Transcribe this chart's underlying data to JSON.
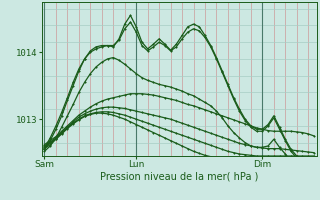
{
  "title": "Pression niveau de la mer( hPa )",
  "ylabel_ticks": [
    1013,
    1014
  ],
  "xtick_labels": [
    "Sam",
    "Lun",
    "Dim"
  ],
  "background_color": "#cce8e2",
  "plot_bg_color": "#cce8e2",
  "line_color": "#1a5c1a",
  "grid_color_h": "#a8cec4",
  "grid_color_v_red": "#cc9999",
  "grid_color_v_dark": "#4a7a6a",
  "ylim": [
    1012.45,
    1014.75
  ],
  "xlim_min": -0.5,
  "xlim_max": 47.5,
  "sam_x": 0,
  "lun_x": 16,
  "dim_x": 38,
  "series_flat": [
    [
      1012.62,
      1012.68,
      1012.74,
      1012.82,
      1012.9,
      1012.98,
      1013.06,
      1013.12,
      1013.18,
      1013.23,
      1013.27,
      1013.3,
      1013.32,
      1013.34,
      1013.36,
      1013.38,
      1013.38,
      1013.38,
      1013.37,
      1013.36,
      1013.34,
      1013.32,
      1013.3,
      1013.28,
      1013.25,
      1013.22,
      1013.2,
      1013.17,
      1013.14,
      1013.11,
      1013.08,
      1013.05,
      1013.02,
      1012.99,
      1012.96,
      1012.93,
      1012.9,
      1012.87,
      1012.85,
      1012.83,
      1012.82,
      1012.82,
      1012.82,
      1012.82,
      1012.81,
      1012.8,
      1012.78,
      1012.75
    ],
    [
      1012.6,
      1012.66,
      1012.72,
      1012.8,
      1012.88,
      1012.96,
      1013.03,
      1013.08,
      1013.12,
      1013.15,
      1013.17,
      1013.18,
      1013.18,
      1013.17,
      1013.16,
      1013.14,
      1013.12,
      1013.1,
      1013.08,
      1013.06,
      1013.04,
      1013.02,
      1013.0,
      1012.97,
      1012.94,
      1012.91,
      1012.88,
      1012.85,
      1012.82,
      1012.79,
      1012.76,
      1012.73,
      1012.7,
      1012.67,
      1012.64,
      1012.62,
      1012.6,
      1012.58,
      1012.57,
      1012.56,
      1012.56,
      1012.56,
      1012.55,
      1012.54,
      1012.53,
      1012.52,
      1012.51,
      1012.5
    ],
    [
      1012.58,
      1012.64,
      1012.71,
      1012.79,
      1012.87,
      1012.94,
      1013.0,
      1013.05,
      1013.08,
      1013.1,
      1013.11,
      1013.11,
      1013.1,
      1013.08,
      1013.06,
      1013.03,
      1013.0,
      1012.97,
      1012.94,
      1012.91,
      1012.88,
      1012.85,
      1012.82,
      1012.79,
      1012.76,
      1012.73,
      1012.7,
      1012.67,
      1012.64,
      1012.61,
      1012.58,
      1012.55,
      1012.52,
      1012.5,
      1012.48,
      1012.47,
      1012.46,
      1012.45,
      1012.45,
      1012.45,
      1012.45,
      1012.45,
      1012.45,
      1012.45,
      1012.45,
      1012.45,
      1012.45,
      1012.45
    ],
    [
      1012.56,
      1012.62,
      1012.7,
      1012.78,
      1012.86,
      1012.93,
      1012.99,
      1013.04,
      1013.07,
      1013.09,
      1013.09,
      1013.08,
      1013.06,
      1013.03,
      1013.0,
      1012.96,
      1012.92,
      1012.88,
      1012.84,
      1012.8,
      1012.76,
      1012.72,
      1012.68,
      1012.64,
      1012.6,
      1012.56,
      1012.52,
      1012.49,
      1012.46,
      1012.44,
      1012.42,
      1012.41,
      1012.4,
      1012.4,
      1012.4,
      1012.4,
      1012.4,
      1012.4,
      1012.4,
      1012.4,
      1012.4,
      1012.4,
      1012.4,
      1012.4,
      1012.4,
      1012.4,
      1012.4,
      1012.4
    ]
  ],
  "series_spiky": [
    [
      1012.55,
      1012.68,
      1012.85,
      1013.05,
      1013.28,
      1013.5,
      1013.72,
      1013.9,
      1014.02,
      1014.08,
      1014.1,
      1014.1,
      1014.08,
      1014.2,
      1014.42,
      1014.55,
      1014.38,
      1014.15,
      1014.05,
      1014.12,
      1014.2,
      1014.12,
      1014.03,
      1014.12,
      1014.25,
      1014.38,
      1014.42,
      1014.38,
      1014.25,
      1014.1,
      1013.92,
      1013.72,
      1013.52,
      1013.32,
      1013.15,
      1013.0,
      1012.9,
      1012.85,
      1012.85,
      1012.92,
      1013.05,
      1012.88,
      1012.7,
      1012.55,
      1012.45,
      1012.35,
      1012.28,
      1012.22
    ],
    [
      1012.57,
      1012.72,
      1012.9,
      1013.1,
      1013.32,
      1013.55,
      1013.75,
      1013.9,
      1014.0,
      1014.05,
      1014.08,
      1014.1,
      1014.1,
      1014.18,
      1014.35,
      1014.45,
      1014.3,
      1014.1,
      1014.02,
      1014.08,
      1014.15,
      1014.1,
      1014.02,
      1014.08,
      1014.2,
      1014.3,
      1014.35,
      1014.32,
      1014.22,
      1014.08,
      1013.9,
      1013.7,
      1013.5,
      1013.3,
      1013.12,
      1012.98,
      1012.88,
      1012.82,
      1012.82,
      1012.9,
      1013.02,
      1012.85,
      1012.68,
      1012.52,
      1012.42,
      1012.33,
      1012.27,
      1012.22
    ],
    [
      1012.52,
      1012.6,
      1012.72,
      1012.88,
      1013.05,
      1013.22,
      1013.4,
      1013.55,
      1013.68,
      1013.78,
      1013.85,
      1013.9,
      1013.92,
      1013.88,
      1013.82,
      1013.75,
      1013.68,
      1013.62,
      1013.58,
      1013.55,
      1013.52,
      1013.5,
      1013.48,
      1013.45,
      1013.42,
      1013.38,
      1013.35,
      1013.3,
      1013.25,
      1013.2,
      1013.12,
      1013.02,
      1012.9,
      1012.8,
      1012.72,
      1012.65,
      1012.6,
      1012.58,
      1012.58,
      1012.6,
      1012.7,
      1012.58,
      1012.48,
      1012.38,
      1012.3,
      1012.22,
      1012.18,
      1012.14
    ]
  ]
}
